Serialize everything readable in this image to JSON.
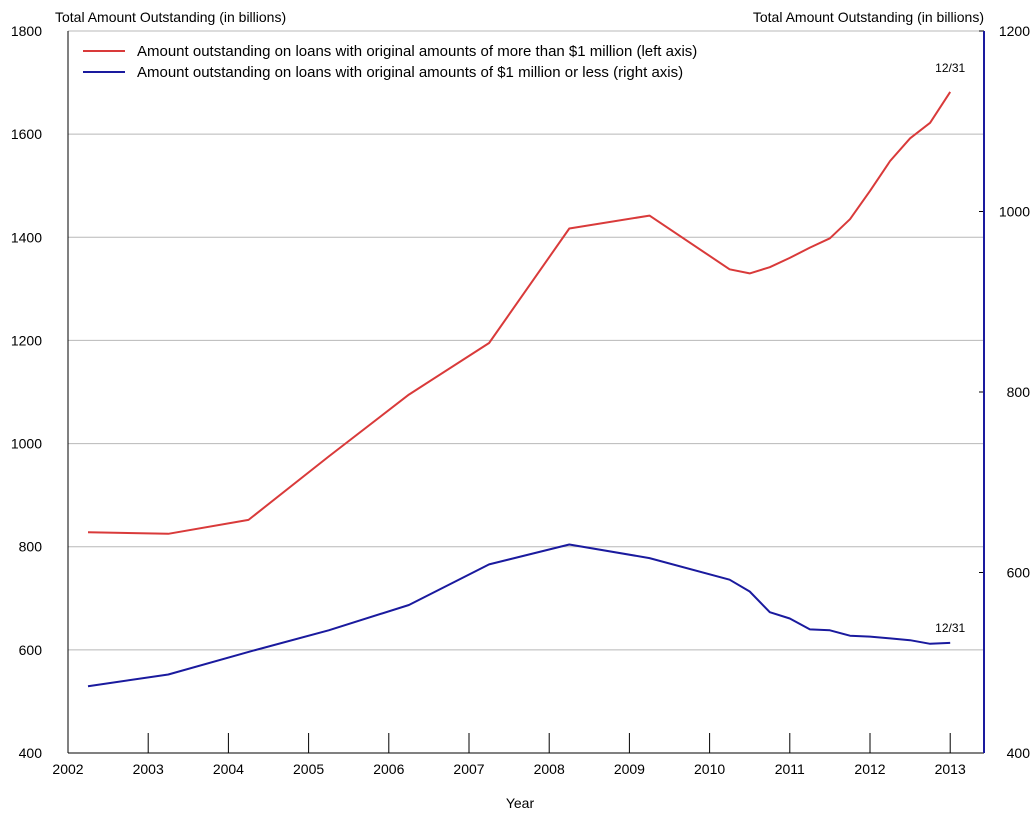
{
  "chart_data": {
    "type": "line",
    "y_left_label": "Total Amount Outstanding (in billions)",
    "y_right_label": "Total Amount Outstanding (in billions)",
    "xlabel": "Year",
    "xlim": [
      2002,
      2013
    ],
    "x_ticks": [
      "2002",
      "2003",
      "2004",
      "2005",
      "2006",
      "2007",
      "2008",
      "2009",
      "2010",
      "2011",
      "2012",
      "2013"
    ],
    "ylim_left": [
      400,
      1800
    ],
    "y_left_ticks": [
      "400",
      "600",
      "800",
      "1000",
      "1200",
      "1400",
      "1600",
      "1800"
    ],
    "ylim_right": [
      400,
      1200
    ],
    "y_right_ticks": [
      "400",
      "600",
      "800",
      "1000",
      "1200"
    ],
    "grid": "horizontal",
    "legend_position": "top-left",
    "series": [
      {
        "name": "Amount outstanding on loans with original amounts of more than $1 million (left axis)",
        "axis": "left",
        "color": "#d93a3a",
        "end_label": "12/31",
        "x": [
          2002.25,
          2003.25,
          2004.25,
          2005.25,
          2006.25,
          2007.25,
          2008.25,
          2009.25,
          2010.25,
          2010.5,
          2010.75,
          2011.0,
          2011.25,
          2011.5,
          2011.75,
          2012.0,
          2012.25,
          2012.5,
          2012.75,
          2013.0
        ],
        "values": [
          828,
          825,
          852,
          975,
          1095,
          1195,
          1417,
          1442,
          1338,
          1330,
          1342,
          1360,
          1380,
          1398,
          1435,
          1490,
          1548,
          1592,
          1622,
          1682
        ]
      },
      {
        "name": "Amount outstanding on loans with original amounts of $1 million or less (right axis)",
        "axis": "right",
        "color": "#1a1a9e",
        "end_label": "12/31",
        "x": [
          2002.25,
          2003.25,
          2004.25,
          2005.25,
          2006.25,
          2007.25,
          2008.25,
          2009.25,
          2010.25,
          2010.5,
          2010.75,
          2011.0,
          2011.25,
          2011.5,
          2011.75,
          2012.0,
          2012.25,
          2012.5,
          2012.75,
          2013.0
        ],
        "values": [
          474,
          487,
          512,
          536,
          564,
          609,
          631,
          616,
          592,
          579,
          556,
          549,
          537,
          536,
          530,
          529,
          527,
          525,
          521,
          522
        ]
      }
    ]
  }
}
